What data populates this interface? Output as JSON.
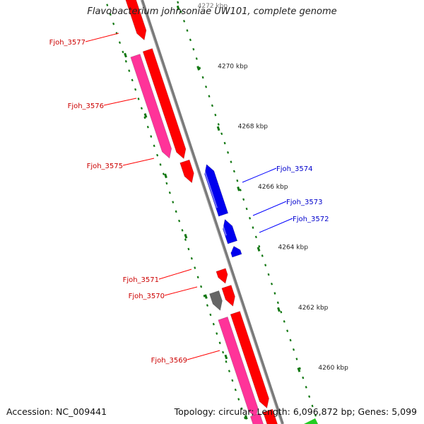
{
  "title": "Flavobacterium johnsoniae UW101, complete genome",
  "footer": {
    "accession": "Accession: NC_009441",
    "summary": "Topology: circular; Length: 6,096,872 bp; Genes: 5,099"
  },
  "colors": {
    "backbone": "#7a7a7a",
    "forward_gene": "#ff0000",
    "reverse_gene": "#0000ee",
    "forward_pseudo": "#ff3399",
    "other_gene": "#666666",
    "tick": "#117711",
    "label_forward": "#cc0000",
    "label_reverse": "#0000cc"
  },
  "ruler": {
    "unit": "kbp",
    "labels": [
      {
        "text": "4272 kbp",
        "kbp": 4272
      },
      {
        "text": "4270 kbp",
        "kbp": 4270
      },
      {
        "text": "4268 kbp",
        "kbp": 4268
      },
      {
        "text": "4266 kbp",
        "kbp": 4266
      },
      {
        "text": "4264 kbp",
        "kbp": 4264
      },
      {
        "text": "4262 kbp",
        "kbp": 4262
      },
      {
        "text": "4260 kbp",
        "kbp": 4260
      }
    ]
  },
  "genes": [
    {
      "name": "Fjoh_3577",
      "strand": "forward",
      "labeled": true
    },
    {
      "name": "Fjoh_3576",
      "strand": "forward",
      "labeled": true
    },
    {
      "name": "Fjoh_3575",
      "strand": "forward",
      "labeled": true
    },
    {
      "name": "Fjoh_3574",
      "strand": "reverse",
      "labeled": true
    },
    {
      "name": "Fjoh_3573",
      "strand": "reverse",
      "labeled": true
    },
    {
      "name": "Fjoh_3572",
      "strand": "reverse",
      "labeled": true
    },
    {
      "name": "Fjoh_3571",
      "strand": "forward",
      "labeled": true
    },
    {
      "name": "Fjoh_3570",
      "strand": "forward",
      "labeled": true
    },
    {
      "name": "Fjoh_3569",
      "strand": "forward",
      "labeled": true
    }
  ]
}
